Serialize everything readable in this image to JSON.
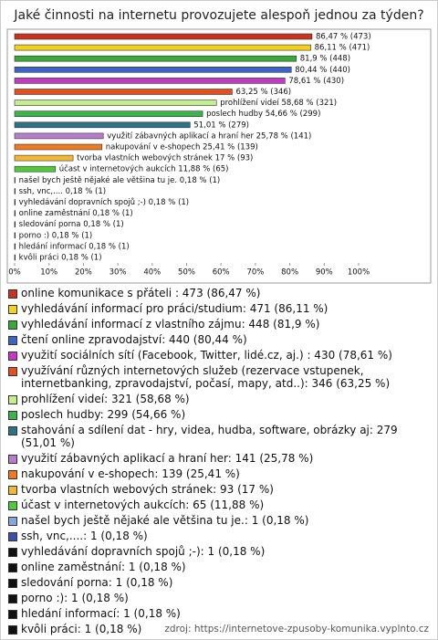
{
  "chart_data": {
    "type": "bar",
    "orientation": "horizontal",
    "title": "Jaké činnosti na internetu provozujete alespoň jednou za týden?",
    "values": [
      86.47,
      86.11,
      81.9,
      80.44,
      78.61,
      63.25,
      58.68,
      54.66,
      51.01,
      25.78,
      25.41,
      17,
      11.88,
      0.18,
      0.18,
      0.18,
      0.18,
      0.18,
      0.18,
      0.18,
      0.18
    ],
    "value_labels": [
      "86,47 % (473)",
      "86,11 % (471)",
      "81,9 % (448)",
      "80,44 % (440)",
      "78,61 % (430)",
      "63,25 % (346)",
      "prohlížení videí 58,68 % (321)",
      "poslech hudby 54,66 % (299)",
      "51,01 % (279)",
      "využití zábavných aplikací a hraní her 25,78 % (141)",
      "nakupování v e-shopech 25,41 % (139)",
      "tvorba vlastních webových stránek 17 % (93)",
      "účast v internetových aukcích 11,88 % (65)",
      "našel bych ještě nějaké ale většina tu je. 0,18 % (1)",
      "ssh, vnc,.... 0,18 % (1)",
      "vyhledávání dopravních spojů ;-) 0,18 % (1)",
      "online zaměstnání 0,18 % (1)",
      "sledování porna 0,18 % (1)",
      "porno :) 0,18 % (1)",
      "hledání informací 0,18 % (1)",
      "kvôli práci 0,18 % (1)"
    ],
    "colors": [
      "#c8321e",
      "#f2d21a",
      "#3aa83a",
      "#3a64c8",
      "#c23ac2",
      "#e2501e",
      "#c4ee90",
      "#3cb44c",
      "#2e7284",
      "#b87ccc",
      "#ee7a22",
      "#f0b834",
      "#52c83c",
      "#86a6dc",
      "#3c50a8",
      "#111111",
      "#111111",
      "#111111",
      "#111111",
      "#111111",
      "#111111"
    ],
    "legend": [
      "online komunikace s přáteli : 473 (86,47 %)",
      "vyhledávání informací pro práci/studium: 471 (86,11 %)",
      "vyhledávání informací z vlastního zájmu: 448 (81,9 %)",
      "čtení online zpravodajství: 440 (80,44 %)",
      "využití sociálních sítí (Facebook, Twitter, lidé.cz, aj.) : 430 (78,61 %)",
      "využívání různých internetových služeb (rezervace vstupenek, internetbanking, zpravodajství, počasí, mapy, atd..): 346 (63,25 %)",
      "prohlížení videí: 321 (58,68 %)",
      "poslech hudby: 299 (54,66 %)",
      "stahování a sdílení dat - hry, videa, hudba, software, obrázky aj: 279 (51,01 %)",
      "využití zábavných aplikací a hraní her: 141 (25,78 %)",
      "nakupování v e-shopech: 139 (25,41 %)",
      "tvorba vlastních webových stránek: 93 (17 %)",
      "účast v internetových aukcích: 65 (11,88 %)",
      "našel bych ještě nějaké ale většina tu je.: 1 (0,18 %)",
      "ssh, vnc,....: 1 (0,18 %)",
      "vyhledávání dopravních spojů ;-): 1 (0,18 %)",
      "online zaměstnání: 1 (0,18 %)",
      "sledování porna: 1 (0,18 %)",
      "porno :): 1 (0,18 %)",
      "hledání informací: 1 (0,18 %)",
      "kvôli práci: 1 (0,18 %)"
    ],
    "xlim": [
      0,
      100
    ],
    "xticks": [
      {
        "value": 0,
        "label": "0%"
      },
      {
        "value": 10,
        "label": "10%"
      },
      {
        "value": 20,
        "label": "20%"
      },
      {
        "value": 30,
        "label": "30%"
      },
      {
        "value": 40,
        "label": "40%"
      },
      {
        "value": 50,
        "label": "50%"
      },
      {
        "value": 60,
        "label": "60%"
      },
      {
        "value": 70,
        "label": "70%"
      },
      {
        "value": 80,
        "label": "80%"
      },
      {
        "value": 90,
        "label": "90%"
      },
      {
        "value": 100,
        "label": "100%"
      }
    ],
    "source": "zdroj: https://internetove-zpusoby-komunika.vyplnto.cz"
  }
}
